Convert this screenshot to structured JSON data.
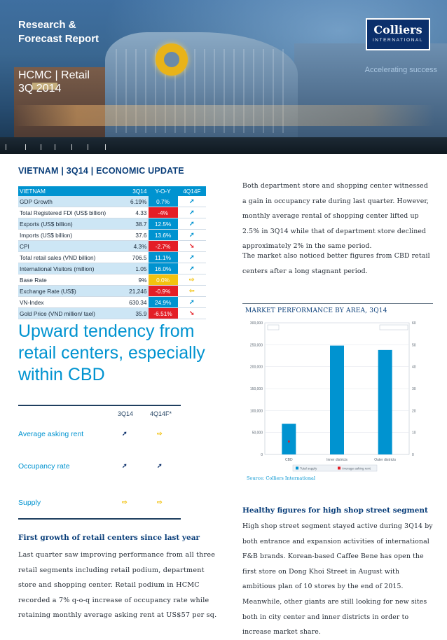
{
  "header": {
    "report_title": "Research &\nForecast Report",
    "subtitle": "HCMC | Retail\n3Q 2014",
    "logo_name": "Colliers",
    "logo_sub": "INTERNATIONAL",
    "tagline": "Accelerating success"
  },
  "section_heading": "VIETNAM | 3Q14 | ECONOMIC UPDATE",
  "econ_table": {
    "headers": [
      "VIETNAM",
      "3Q14",
      "Y-O-Y",
      "4Q14F"
    ],
    "rows": [
      {
        "label": "GDP Growth",
        "value": "6.19%",
        "yoy": "0.7%",
        "yoy_color": "#0093d0",
        "arrow": "➚",
        "arrow_color": "#0093d0"
      },
      {
        "label": "Total Registered FDI (US$ billion)",
        "value": "4.33",
        "yoy": "-4%",
        "yoy_color": "#e41e26",
        "arrow": "➚",
        "arrow_color": "#0093d0"
      },
      {
        "label": "Exports (US$ billion)",
        "value": "38.7",
        "yoy": "12.5%",
        "yoy_color": "#0093d0",
        "arrow": "➚",
        "arrow_color": "#0093d0"
      },
      {
        "label": "Imports (US$ billion)",
        "value": "37.6",
        "yoy": "13.6%",
        "yoy_color": "#0093d0",
        "arrow": "➚",
        "arrow_color": "#0093d0"
      },
      {
        "label": "CPI",
        "value": "4.3%",
        "yoy": "-2.7%",
        "yoy_color": "#e41e26",
        "arrow": "➘",
        "arrow_color": "#e41e26"
      },
      {
        "label": "Total retail sales (VND billion)",
        "value": "706.5",
        "yoy": "11.1%",
        "yoy_color": "#0093d0",
        "arrow": "➚",
        "arrow_color": "#0093d0"
      },
      {
        "label": "International Visitors (million)",
        "value": "1.05",
        "yoy": "16.0%",
        "yoy_color": "#0093d0",
        "arrow": "➚",
        "arrow_color": "#0093d0"
      },
      {
        "label": "Base Rate",
        "value": "9%",
        "yoy": "0.0%",
        "yoy_color": "#f2c20f",
        "arrow": "⇨",
        "arrow_color": "#f2c20f"
      },
      {
        "label": "Exchange Rate (US$)",
        "value": "21,246",
        "yoy": "-0.9%",
        "yoy_color": "#e41e26",
        "arrow": "⇦",
        "arrow_color": "#f2c20f"
      },
      {
        "label": "VN-Index",
        "value": "630.34",
        "yoy": "24.9%",
        "yoy_color": "#0093d0",
        "arrow": "➚",
        "arrow_color": "#0093d0"
      },
      {
        "label": "Gold Price (VND million/ tael)",
        "value": "35.9",
        "yoy": "-6.51%",
        "yoy_color": "#e41e26",
        "arrow": "➘",
        "arrow_color": "#e41e26"
      }
    ]
  },
  "big_heading": "Upward tendency from retail centers, especially within CBD",
  "forecast": {
    "col1": "3Q14",
    "col2": "4Q14F*",
    "rows": [
      {
        "label": "Average asking rent",
        "a1": "➚",
        "a1_color": "#0b2f6b",
        "a2": "⇨",
        "a2_color": "#f2c20f"
      },
      {
        "label": "Occupancy rate",
        "a1": "➚",
        "a1_color": "#0b2f6b",
        "a2": "➚",
        "a2_color": "#0b2f6b"
      },
      {
        "label": "Supply",
        "a1": "⇨",
        "a1_color": "#f2c20f",
        "a2": "⇨",
        "a2_color": "#f2c20f"
      }
    ]
  },
  "left_article": {
    "heading": "First growth of retail centers since last year",
    "body": "Last quarter saw improving performance from all three retail segments including retail podium, department store and shopping center. Retail podium in HCMC recorded a 7% q-o-q increase of occupancy rate while retaining monthly average asking rent at US$57 per sq."
  },
  "right_text": {
    "p1": "Both department store and shopping center witnessed a gain in occupancy rate during last quarter. However, monthly average rental of shopping center lifted up 2.5% in 3Q14 while that of department store declined approximately 2% in the same period.",
    "p2": "The market also noticed better figures from CBD retail centers after a long stagnant period.",
    "heading2": "Healthy figures for high shop street segment",
    "p3": "High shop street segment stayed active during 3Q14 by both entrance and expansion activities of international F&B brands. Korean-based Caffee Bene has open the first store on Dong Khoi Street in August with ambitious plan of 10 stores by the end of 2015. Meanwhile, other giants are still looking for new sites both in city center and inner districts in order to increase market share."
  },
  "chart_title": "MARKET PERFORMANCE BY AREA, 3Q14",
  "chart_source": "Source: Colliers International",
  "chart_data": {
    "type": "bar",
    "categories": [
      "CBD",
      "Inner districts",
      "Outer districts"
    ],
    "series": [
      {
        "name": "Total supply",
        "values": [
          70000,
          248000,
          238000
        ],
        "color": "#0093d0"
      },
      {
        "name": "Average asking rent",
        "values": [
          5.9,
          null,
          null
        ],
        "color": "#e41e26"
      }
    ],
    "y_left_ticks": [
      "0",
      "50,000",
      "100,000",
      "150,000",
      "200,000",
      "250,000",
      "300,000"
    ],
    "y_right_ticks": [
      "0",
      "10",
      "20",
      "30",
      "40",
      "50",
      "60"
    ],
    "ylim": [
      0,
      300000
    ],
    "y2lim": [
      0,
      60
    ],
    "grid": true,
    "legend_position": "bottom"
  }
}
